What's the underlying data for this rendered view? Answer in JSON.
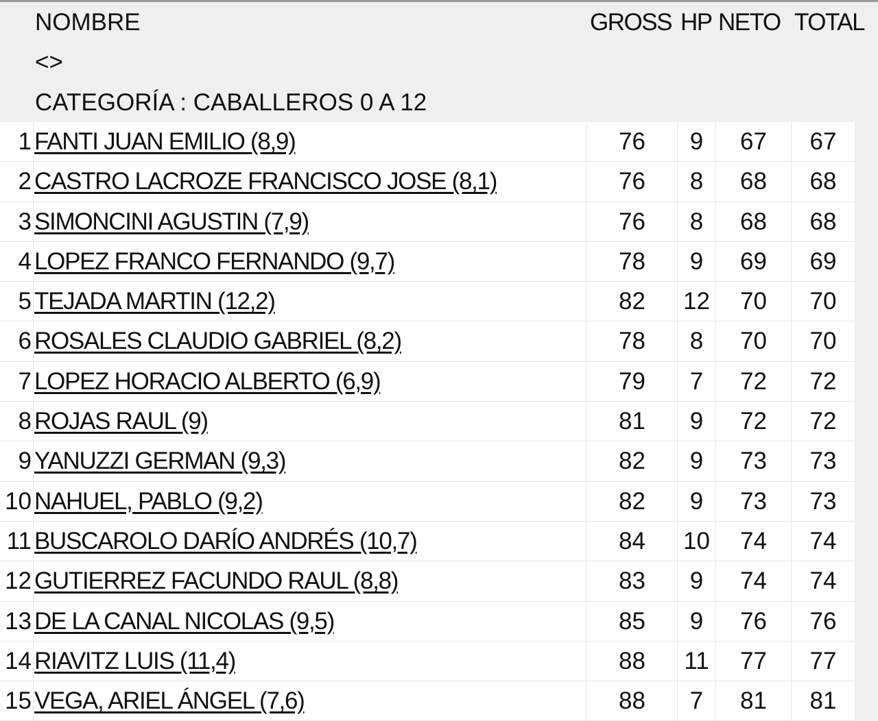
{
  "header": {
    "nombre": "NOMBRE",
    "brackets": "<>",
    "categoria": "CATEGORÍA : CABALLEROS 0 A 12",
    "gross": "GROSS",
    "hp": "HP",
    "neto": "NETO",
    "total": "TOTAL"
  },
  "rows": [
    {
      "pos": "1",
      "name": "FANTI JUAN EMILIO (8,9)",
      "gross": "76",
      "hp": "9",
      "neto": "67",
      "total": "67"
    },
    {
      "pos": "2",
      "name": "CASTRO LACROZE FRANCISCO JOSE (8,1)",
      "gross": "76",
      "hp": "8",
      "neto": "68",
      "total": "68"
    },
    {
      "pos": "3",
      "name": "SIMONCINI AGUSTIN (7,9)",
      "gross": "76",
      "hp": "8",
      "neto": "68",
      "total": "68"
    },
    {
      "pos": "4",
      "name": "LOPEZ FRANCO FERNANDO (9,7)",
      "gross": "78",
      "hp": "9",
      "neto": "69",
      "total": "69"
    },
    {
      "pos": "5",
      "name": "TEJADA MARTIN (12,2)",
      "gross": "82",
      "hp": "12",
      "neto": "70",
      "total": "70"
    },
    {
      "pos": "6",
      "name": "ROSALES CLAUDIO GABRIEL (8,2)",
      "gross": "78",
      "hp": "8",
      "neto": "70",
      "total": "70"
    },
    {
      "pos": "7",
      "name": "LOPEZ HORACIO ALBERTO (6,9)",
      "gross": "79",
      "hp": "7",
      "neto": "72",
      "total": "72"
    },
    {
      "pos": "8",
      "name": "ROJAS RAUL (9)",
      "gross": "81",
      "hp": "9",
      "neto": "72",
      "total": "72"
    },
    {
      "pos": "9",
      "name": "YANUZZI GERMAN (9,3)",
      "gross": "82",
      "hp": "9",
      "neto": "73",
      "total": "73"
    },
    {
      "pos": "10",
      "name": "NAHUEL, PABLO (9,2)",
      "gross": "82",
      "hp": "9",
      "neto": "73",
      "total": "73"
    },
    {
      "pos": "11",
      "name": "BUSCAROLO DARÍO ANDRÉS (10,7)",
      "gross": "84",
      "hp": "10",
      "neto": "74",
      "total": "74"
    },
    {
      "pos": "12",
      "name": "GUTIERREZ FACUNDO RAUL (8,8)",
      "gross": "83",
      "hp": "9",
      "neto": "74",
      "total": "74"
    },
    {
      "pos": "13",
      "name": "DE LA CANAL NICOLAS (9,5)",
      "gross": "85",
      "hp": "9",
      "neto": "76",
      "total": "76"
    },
    {
      "pos": "14",
      "name": "RIAVITZ LUIS (11,4)",
      "gross": "88",
      "hp": "11",
      "neto": "77",
      "total": "77"
    },
    {
      "pos": "15",
      "name": "VEGA, ARIEL ÁNGEL (7,6)",
      "gross": "88",
      "hp": "7",
      "neto": "81",
      "total": "81"
    }
  ]
}
